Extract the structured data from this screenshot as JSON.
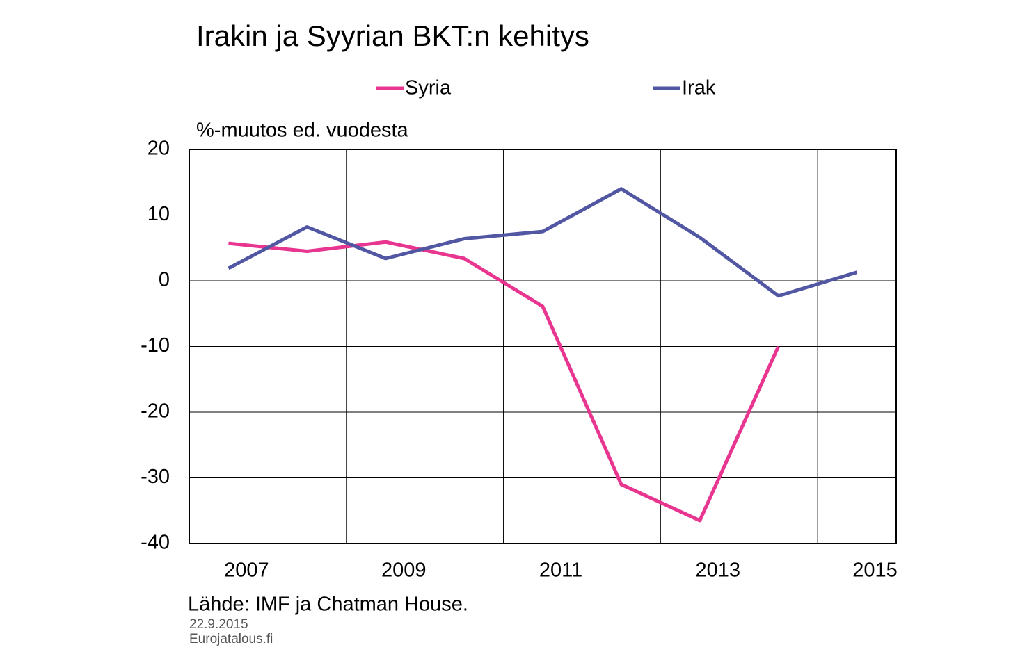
{
  "chart_data": {
    "type": "line",
    "title": "Irakin ja Syyrian BKT:n kehitys",
    "y_label": "%-muutos ed. vuodesta",
    "source": "Lähde: IMF ja Chatman House.",
    "date": "22.9.2015",
    "site": "Eurojatalous.fi",
    "categories": [
      "2007",
      null,
      "2009",
      null,
      "2011",
      null,
      "2013",
      null,
      "2015"
    ],
    "series": [
      {
        "name": "Syria",
        "color": "#e8358f",
        "values": [
          5.7,
          4.5,
          5.9,
          3.4,
          -3.9,
          -31,
          -36.5,
          -10,
          null
        ]
      },
      {
        "name": "Irak",
        "color": "#5157a3",
        "values": [
          1.9,
          8.2,
          3.4,
          6.4,
          7.5,
          14,
          6.6,
          -2.3,
          1.3
        ]
      }
    ],
    "ylim": [
      -40,
      20
    ],
    "yticks": [
      -40,
      -30,
      -20,
      -10,
      0,
      10,
      20
    ],
    "grid": true
  }
}
